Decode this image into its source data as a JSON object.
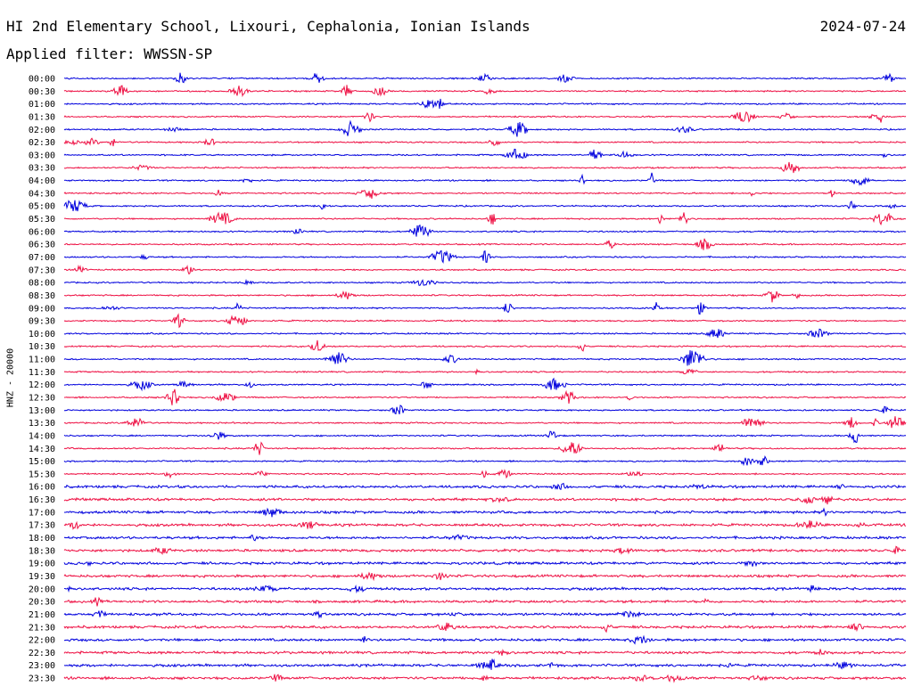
{
  "header": {
    "title": "HI 2nd Elementary School, Lixouri, Cephalonia, Ionian Islands",
    "date": "2024-07-24",
    "filter": "Applied filter: WWSSN-SP"
  },
  "colors": {
    "blue": "#0000dd",
    "red": "#ee1144"
  },
  "chart_data": {
    "type": "line",
    "title": "HI 2nd Elementary School, Lixouri, Cephalonia, Ionian Islands",
    "ylabel": "HNZ - 20000",
    "xlabel": "",
    "rows": [
      "00:00",
      "00:30",
      "01:00",
      "01:30",
      "02:00",
      "02:30",
      "03:00",
      "03:30",
      "04:00",
      "04:30",
      "05:00",
      "05:30",
      "06:00",
      "06:30",
      "07:00",
      "07:30",
      "08:00",
      "08:30",
      "09:00",
      "09:30",
      "10:00",
      "10:30",
      "11:00",
      "11:30",
      "12:00",
      "12:30",
      "13:00",
      "13:30",
      "14:00",
      "14:30",
      "15:00",
      "15:30",
      "16:00",
      "16:30",
      "17:00",
      "17:30",
      "18:00",
      "18:30",
      "19:00",
      "19:30",
      "20:00",
      "20:30",
      "21:00",
      "21:30",
      "22:00",
      "22:30",
      "23:00",
      "23:30"
    ],
    "series_colors": [
      "#0000dd",
      "#ee1144"
    ],
    "grid": false
  }
}
